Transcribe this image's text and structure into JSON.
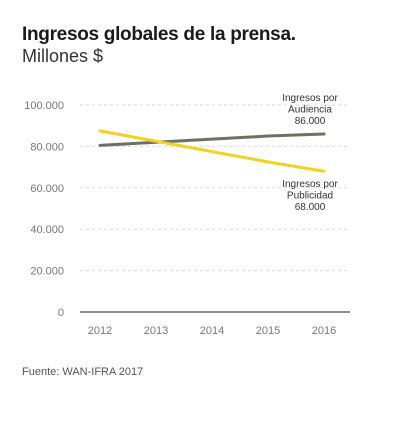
{
  "chart_data": {
    "type": "line",
    "title": "Ingresos globales de la prensa.",
    "subtitle": "Millones $",
    "x": [
      "2012",
      "2013",
      "2014",
      "2015",
      "2016"
    ],
    "y_ticks": [
      "0",
      "20.000",
      "40.000",
      "60.000",
      "80.000",
      "100.000"
    ],
    "ylim": [
      0,
      100000
    ],
    "grid": true,
    "series": [
      {
        "key": "audiencia",
        "color": "#6b7262",
        "values": [
          80500,
          82000,
          83500,
          85000,
          86000
        ],
        "label_lines": [
          "Ingresos por",
          "Audiencia",
          "86.000"
        ]
      },
      {
        "key": "publicidad",
        "color": "#f2d21e",
        "values": [
          87500,
          82500,
          77500,
          72500,
          68000
        ],
        "label_lines": [
          "Ingresos por",
          "Publicidad",
          "68.000"
        ]
      }
    ],
    "source": "Fuente: WAN-IFRA 2017"
  }
}
